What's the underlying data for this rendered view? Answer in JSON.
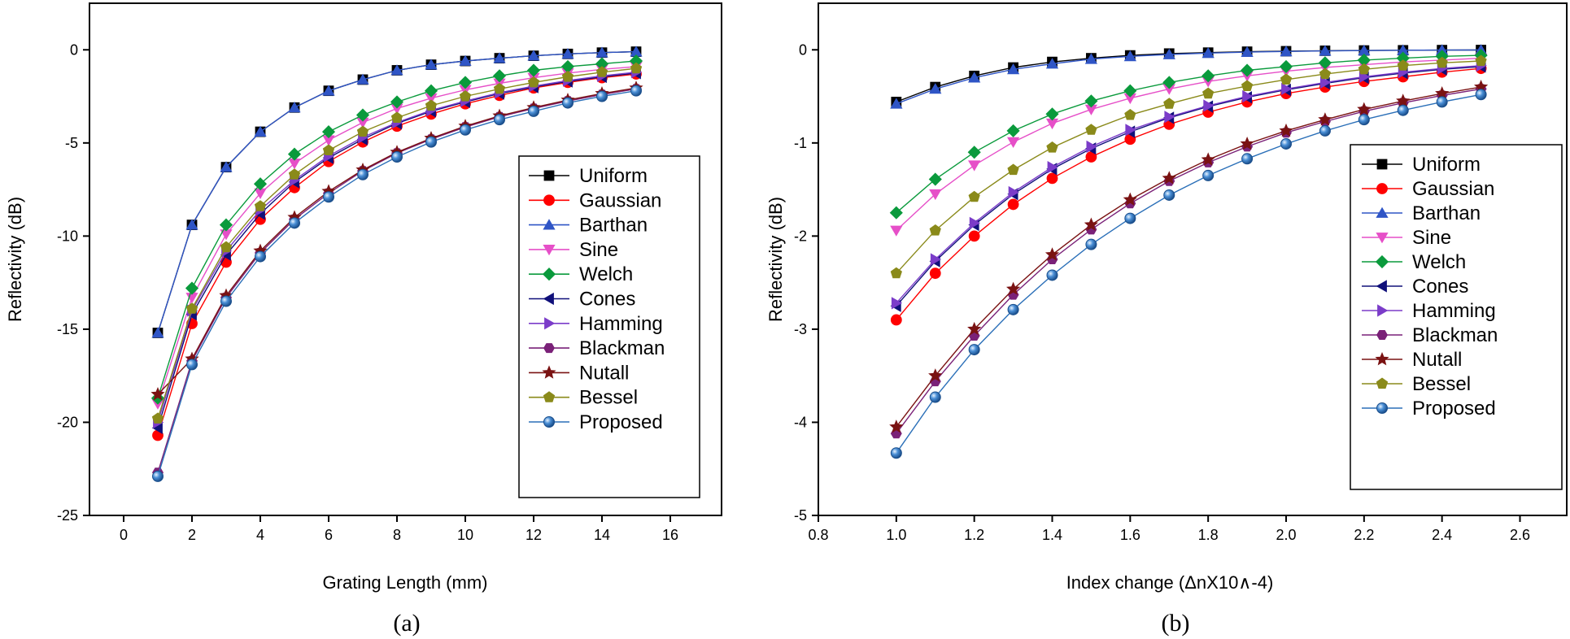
{
  "colors": {
    "Uniform": "#000000",
    "Gaussian": "#ff0000",
    "Barthan": "#2f55c6",
    "Sine": "#e64fc8",
    "Welch": "#0a9a3c",
    "Cones": "#10107a",
    "Hamming": "#7b3cc9",
    "Blackman": "#7a2178",
    "Nutall": "#7a1212",
    "Bessel": "#8a8a1a",
    "Proposed": "#2a6fb8"
  },
  "markers": {
    "Uniform": "square",
    "Gaussian": "circle",
    "Barthan": "triangle-up",
    "Sine": "triangle-down",
    "Welch": "diamond",
    "Cones": "triangle-left",
    "Hamming": "triangle-right",
    "Blackman": "hexagon",
    "Nutall": "star",
    "Bessel": "pentagon",
    "Proposed": "sphere"
  },
  "chart_data": [
    {
      "type": "line",
      "panel_label": "(a)",
      "xlabel": "Grating Length (mm)",
      "ylabel": "Reflectivity (dB)",
      "xlim": [
        -1,
        17.5
      ],
      "ylim": [
        -25,
        2.5
      ],
      "xticks": [
        0,
        2,
        4,
        6,
        8,
        10,
        12,
        14,
        16
      ],
      "yticks": [
        -25,
        -20,
        -15,
        -10,
        -5,
        0
      ],
      "legend_position": "center-right",
      "x": [
        1,
        2,
        3,
        4,
        5,
        6,
        7,
        8,
        9,
        10,
        11,
        12,
        13,
        14,
        15
      ],
      "series": [
        {
          "name": "Uniform",
          "values": [
            -15.2,
            -9.4,
            -6.3,
            -4.4,
            -3.1,
            -2.2,
            -1.6,
            -1.1,
            -0.8,
            -0.6,
            -0.45,
            -0.32,
            -0.22,
            -0.15,
            -0.1
          ]
        },
        {
          "name": "Gaussian",
          "values": [
            -20.7,
            -14.7,
            -11.4,
            -9.1,
            -7.4,
            -6.0,
            -4.95,
            -4.1,
            -3.45,
            -2.9,
            -2.45,
            -2.05,
            -1.75,
            -1.5,
            -1.3
          ]
        },
        {
          "name": "Barthan",
          "values": [
            -15.2,
            -9.4,
            -6.3,
            -4.4,
            -3.1,
            -2.2,
            -1.6,
            -1.1,
            -0.8,
            -0.6,
            -0.45,
            -0.32,
            -0.22,
            -0.15,
            -0.1
          ]
        },
        {
          "name": "Sine",
          "values": [
            -19.0,
            -13.3,
            -9.9,
            -7.7,
            -6.1,
            -4.85,
            -3.9,
            -3.15,
            -2.6,
            -2.15,
            -1.8,
            -1.5,
            -1.25,
            -1.05,
            -0.9
          ]
        },
        {
          "name": "Welch",
          "values": [
            -18.7,
            -12.8,
            -9.4,
            -7.2,
            -5.6,
            -4.4,
            -3.5,
            -2.8,
            -2.2,
            -1.75,
            -1.4,
            -1.1,
            -0.9,
            -0.75,
            -0.6
          ]
        },
        {
          "name": "Cones",
          "values": [
            -20.3,
            -14.2,
            -11.0,
            -8.8,
            -7.1,
            -5.8,
            -4.8,
            -3.95,
            -3.3,
            -2.8,
            -2.35,
            -2.0,
            -1.7,
            -1.45,
            -1.25
          ]
        },
        {
          "name": "Hamming",
          "values": [
            -20.0,
            -14.0,
            -10.8,
            -8.6,
            -7.0,
            -5.7,
            -4.7,
            -3.9,
            -3.25,
            -2.75,
            -2.3,
            -1.95,
            -1.65,
            -1.4,
            -1.2
          ]
        },
        {
          "name": "Blackman",
          "values": [
            -22.7,
            -16.7,
            -13.3,
            -10.9,
            -9.1,
            -7.7,
            -6.5,
            -5.55,
            -4.8,
            -4.15,
            -3.6,
            -3.15,
            -2.75,
            -2.4,
            -2.1
          ]
        },
        {
          "name": "Nutall",
          "values": [
            -18.5,
            -16.6,
            -13.2,
            -10.8,
            -9.0,
            -7.6,
            -6.45,
            -5.5,
            -4.75,
            -4.1,
            -3.55,
            -3.1,
            -2.7,
            -2.35,
            -2.05
          ]
        },
        {
          "name": "Bessel",
          "values": [
            -19.8,
            -13.9,
            -10.6,
            -8.4,
            -6.7,
            -5.4,
            -4.4,
            -3.65,
            -3.0,
            -2.5,
            -2.1,
            -1.75,
            -1.45,
            -1.2,
            -1.0
          ]
        },
        {
          "name": "Proposed",
          "values": [
            -22.9,
            -16.9,
            -13.5,
            -11.1,
            -9.3,
            -7.9,
            -6.7,
            -5.75,
            -4.95,
            -4.3,
            -3.75,
            -3.3,
            -2.85,
            -2.5,
            -2.2
          ]
        }
      ]
    },
    {
      "type": "line",
      "panel_label": "(b)",
      "xlabel": "Index change (ΔnX10∧-4)",
      "ylabel": "Reflectivity (dB)",
      "xlim": [
        0.8,
        2.72
      ],
      "ylim": [
        -5,
        0.5
      ],
      "xticks": [
        0.8,
        1.0,
        1.2,
        1.4,
        1.6,
        1.8,
        2.0,
        2.2,
        2.4,
        2.6
      ],
      "xtick_labels": [
        "0.8",
        "1.0",
        "1.2",
        "1.4",
        "1.6",
        "1.8",
        "2.0",
        "2.2",
        "2.4",
        "2.6"
      ],
      "yticks": [
        -5,
        -4,
        -3,
        -2,
        -1,
        0
      ],
      "legend_position": "center-right",
      "x": [
        1.0,
        1.1,
        1.2,
        1.3,
        1.4,
        1.5,
        1.6,
        1.7,
        1.8,
        1.9,
        2.0,
        2.1,
        2.2,
        2.3,
        2.4,
        2.5
      ],
      "series": [
        {
          "name": "Uniform",
          "values": [
            -0.56,
            -0.4,
            -0.28,
            -0.19,
            -0.13,
            -0.09,
            -0.06,
            -0.04,
            -0.03,
            -0.02,
            -0.015,
            -0.01,
            -0.007,
            -0.005,
            -0.003,
            -0.002
          ]
        },
        {
          "name": "Gaussian",
          "values": [
            -2.9,
            -2.4,
            -2.0,
            -1.66,
            -1.38,
            -1.15,
            -0.96,
            -0.8,
            -0.67,
            -0.56,
            -0.47,
            -0.4,
            -0.34,
            -0.29,
            -0.24,
            -0.2
          ]
        },
        {
          "name": "Barthan",
          "values": [
            -0.58,
            -0.42,
            -0.3,
            -0.21,
            -0.15,
            -0.1,
            -0.07,
            -0.05,
            -0.035,
            -0.025,
            -0.018,
            -0.012,
            -0.008,
            -0.005,
            -0.003,
            -0.002
          ]
        },
        {
          "name": "Sine",
          "values": [
            -1.94,
            -1.55,
            -1.24,
            -0.99,
            -0.79,
            -0.64,
            -0.52,
            -0.42,
            -0.34,
            -0.28,
            -0.23,
            -0.19,
            -0.16,
            -0.13,
            -0.11,
            -0.09
          ]
        },
        {
          "name": "Welch",
          "values": [
            -1.75,
            -1.39,
            -1.1,
            -0.87,
            -0.69,
            -0.55,
            -0.44,
            -0.35,
            -0.28,
            -0.22,
            -0.18,
            -0.14,
            -0.11,
            -0.09,
            -0.07,
            -0.06
          ]
        },
        {
          "name": "Cones",
          "values": [
            -2.75,
            -2.27,
            -1.88,
            -1.55,
            -1.28,
            -1.06,
            -0.88,
            -0.73,
            -0.61,
            -0.51,
            -0.43,
            -0.36,
            -0.3,
            -0.25,
            -0.21,
            -0.18
          ]
        },
        {
          "name": "Hamming",
          "values": [
            -2.72,
            -2.25,
            -1.86,
            -1.53,
            -1.26,
            -1.04,
            -0.86,
            -0.72,
            -0.6,
            -0.5,
            -0.42,
            -0.35,
            -0.29,
            -0.24,
            -0.2,
            -0.17
          ]
        },
        {
          "name": "Blackman",
          "values": [
            -4.12,
            -3.56,
            -3.07,
            -2.63,
            -2.25,
            -1.93,
            -1.65,
            -1.41,
            -1.21,
            -1.04,
            -0.89,
            -0.77,
            -0.66,
            -0.57,
            -0.49,
            -0.42
          ]
        },
        {
          "name": "Nutall",
          "values": [
            -4.05,
            -3.5,
            -3.0,
            -2.57,
            -2.2,
            -1.88,
            -1.61,
            -1.38,
            -1.18,
            -1.01,
            -0.87,
            -0.75,
            -0.64,
            -0.55,
            -0.47,
            -0.4
          ]
        },
        {
          "name": "Bessel",
          "values": [
            -2.4,
            -1.94,
            -1.58,
            -1.29,
            -1.05,
            -0.86,
            -0.7,
            -0.58,
            -0.47,
            -0.39,
            -0.32,
            -0.26,
            -0.21,
            -0.17,
            -0.14,
            -0.12
          ]
        },
        {
          "name": "Proposed",
          "values": [
            -4.33,
            -3.73,
            -3.22,
            -2.79,
            -2.42,
            -2.09,
            -1.81,
            -1.56,
            -1.35,
            -1.17,
            -1.01,
            -0.87,
            -0.75,
            -0.65,
            -0.56,
            -0.48
          ]
        }
      ]
    }
  ]
}
